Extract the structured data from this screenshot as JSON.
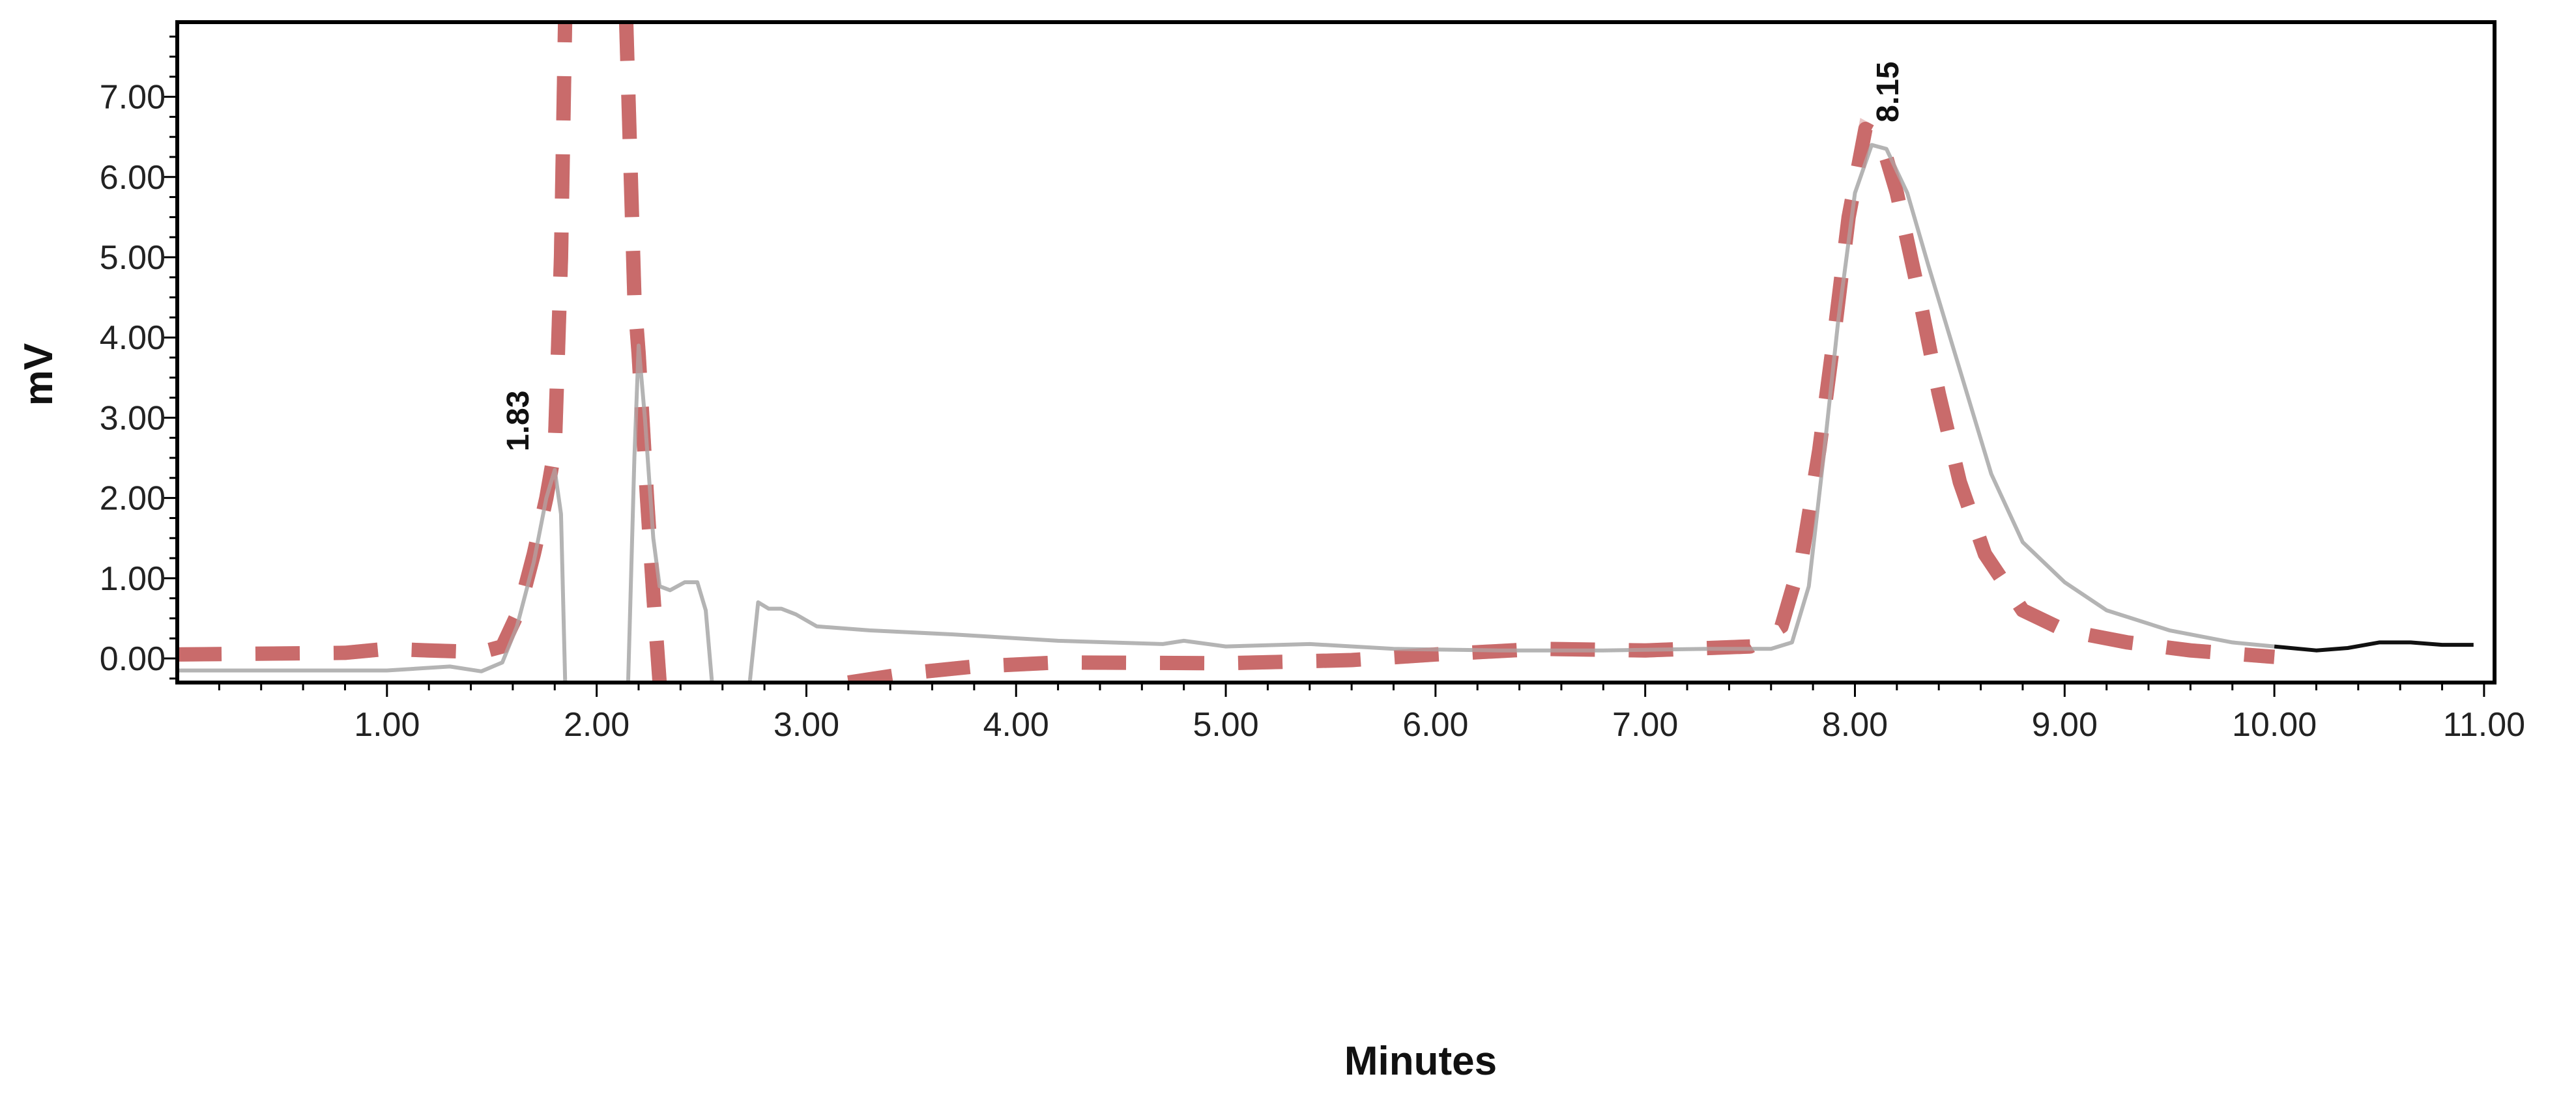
{
  "chart_data": {
    "type": "line",
    "title": "",
    "xlabel": "Minutes",
    "ylabel": "mV",
    "xlim": [
      0,
      11.05
    ],
    "ylim": [
      -0.3,
      7.93
    ],
    "grid": false,
    "x_ticks": [
      "1.00",
      "2.00",
      "3.00",
      "4.00",
      "5.00",
      "6.00",
      "7.00",
      "8.00",
      "9.00",
      "10.00",
      "11.00"
    ],
    "x_tick_values": [
      1,
      2,
      3,
      4,
      5,
      6,
      7,
      8,
      9,
      10,
      11
    ],
    "y_ticks": [
      "0.00",
      "1.00",
      "2.00",
      "3.00",
      "4.00",
      "5.00",
      "6.00",
      "7.00"
    ],
    "y_tick_values": [
      0,
      1,
      2,
      3,
      4,
      5,
      6,
      7
    ],
    "peak_labels": [
      {
        "text": "1.83",
        "x": 1.83,
        "y": 2.5
      },
      {
        "text": "8.15",
        "x": 8.15,
        "y": 6.6
      }
    ],
    "series": [
      {
        "style": "solid",
        "color": "#b4b4b4",
        "points": [
          [
            0,
            -0.15
          ],
          [
            0.5,
            -0.15
          ],
          [
            1.0,
            -0.15
          ],
          [
            1.3,
            -0.1
          ],
          [
            1.45,
            -0.16
          ],
          [
            1.55,
            -0.05
          ],
          [
            1.62,
            0.4
          ],
          [
            1.7,
            1.2
          ],
          [
            1.76,
            2.0
          ],
          [
            1.8,
            2.35
          ],
          [
            1.83,
            1.8
          ],
          [
            1.85,
            -0.3
          ],
          null,
          [
            2.15,
            -0.3
          ],
          [
            2.18,
            2.5
          ],
          [
            2.2,
            3.9
          ],
          [
            2.23,
            3.0
          ],
          [
            2.27,
            1.5
          ],
          [
            2.3,
            0.9
          ],
          [
            2.35,
            0.85
          ],
          [
            2.42,
            0.95
          ],
          [
            2.48,
            0.95
          ],
          [
            2.52,
            0.6
          ],
          [
            2.55,
            -0.3
          ],
          null,
          [
            2.73,
            -0.3
          ],
          [
            2.77,
            0.7
          ],
          [
            2.82,
            0.62
          ],
          [
            2.88,
            0.62
          ],
          [
            2.95,
            0.55
          ],
          [
            3.05,
            0.4
          ],
          [
            3.3,
            0.35
          ],
          [
            3.7,
            0.3
          ],
          [
            4.2,
            0.22
          ],
          [
            4.7,
            0.18
          ],
          [
            4.8,
            0.22
          ],
          [
            5.0,
            0.15
          ],
          [
            5.4,
            0.18
          ],
          [
            5.8,
            0.12
          ],
          [
            6.3,
            0.1
          ],
          [
            6.8,
            0.1
          ],
          [
            7.3,
            0.12
          ],
          [
            7.6,
            0.12
          ],
          [
            7.7,
            0.2
          ],
          [
            7.78,
            0.9
          ],
          [
            7.85,
            2.5
          ],
          [
            7.92,
            4.2
          ],
          [
            8.0,
            5.8
          ],
          [
            8.08,
            6.4
          ],
          [
            8.15,
            6.35
          ],
          [
            8.25,
            5.8
          ],
          [
            8.35,
            4.9
          ],
          [
            8.5,
            3.6
          ],
          [
            8.65,
            2.3
          ],
          [
            8.8,
            1.45
          ],
          [
            9.0,
            0.95
          ],
          [
            9.2,
            0.6
          ],
          [
            9.5,
            0.35
          ],
          [
            9.8,
            0.2
          ],
          [
            10.0,
            0.15
          ]
        ]
      },
      {
        "style": "solid",
        "color": "#111111",
        "points": [
          [
            10.0,
            0.15
          ],
          [
            10.2,
            0.1
          ],
          [
            10.35,
            0.13
          ],
          [
            10.5,
            0.2
          ],
          [
            10.65,
            0.2
          ],
          [
            10.8,
            0.17
          ],
          [
            10.95,
            0.17
          ]
        ]
      },
      {
        "style": "dashed",
        "color": "#c45c5c",
        "points": [
          [
            0,
            0.05
          ],
          [
            0.8,
            0.07
          ],
          [
            1.0,
            0.12
          ],
          [
            1.2,
            0.1
          ],
          [
            1.45,
            0.08
          ],
          [
            1.55,
            0.15
          ],
          [
            1.63,
            0.6
          ],
          [
            1.7,
            1.3
          ],
          [
            1.76,
            2.0
          ],
          [
            1.8,
            2.6
          ],
          [
            1.83,
            5.0
          ],
          [
            1.85,
            8.0
          ],
          null,
          [
            2.14,
            8.0
          ],
          [
            2.18,
            4.5
          ],
          [
            2.2,
            3.8
          ],
          [
            2.24,
            2.0
          ],
          [
            2.27,
            0.8
          ],
          [
            2.3,
            -0.3
          ],
          null,
          [
            3.2,
            -0.3
          ],
          [
            3.5,
            -0.18
          ],
          [
            3.8,
            -0.1
          ],
          [
            4.2,
            -0.05
          ],
          [
            5.0,
            -0.06
          ],
          [
            5.6,
            -0.02
          ],
          [
            6.0,
            0.05
          ],
          [
            6.5,
            0.12
          ],
          [
            7.0,
            0.1
          ],
          [
            7.5,
            0.15
          ],
          [
            7.65,
            0.4
          ],
          [
            7.75,
            1.3
          ],
          [
            7.83,
            2.6
          ],
          [
            7.9,
            4.0
          ],
          [
            7.97,
            5.5
          ],
          [
            8.05,
            6.6
          ],
          [
            8.12,
            6.5
          ],
          [
            8.2,
            5.8
          ],
          [
            8.3,
            4.6
          ],
          [
            8.4,
            3.3
          ],
          [
            8.5,
            2.2
          ],
          [
            8.62,
            1.3
          ],
          [
            8.8,
            0.6
          ],
          [
            9.0,
            0.35
          ],
          [
            9.3,
            0.2
          ],
          [
            9.6,
            0.1
          ],
          [
            10.0,
            0.02
          ]
        ]
      }
    ]
  }
}
